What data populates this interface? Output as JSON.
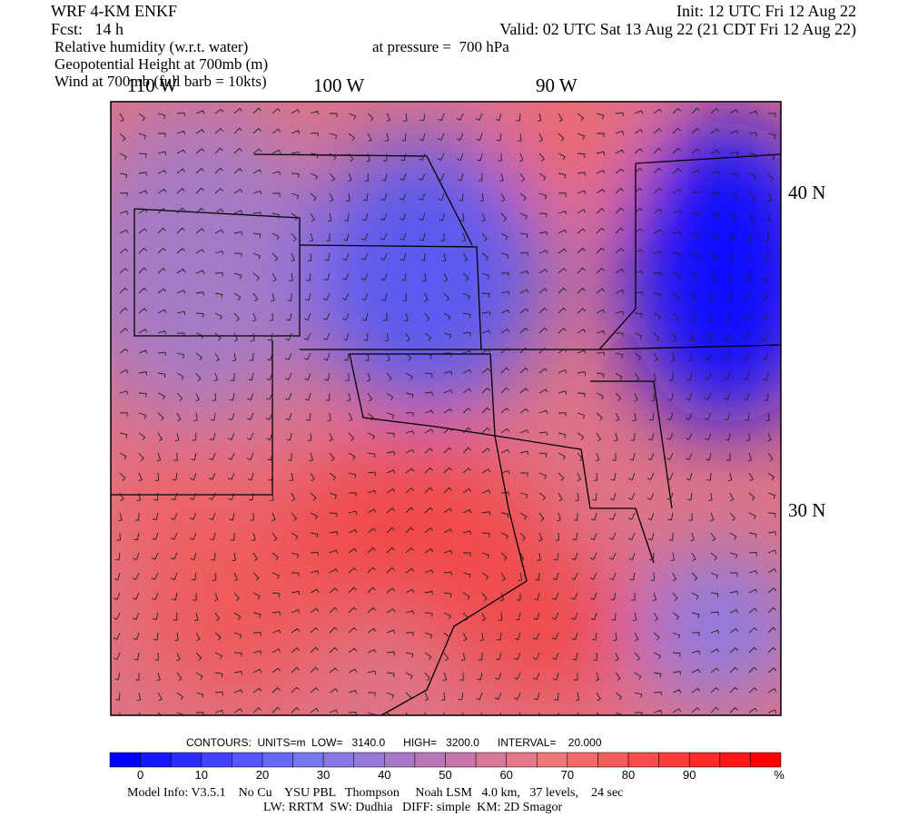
{
  "header": {
    "model": "WRF 4-KM ENKF",
    "forecast": "Fcst:   14 h",
    "init": "Init: 12 UTC Fri 12 Aug 22",
    "valid": "Valid: 02 UTC Sat 13 Aug 22 (21 CDT Fri 12 Aug 22)",
    "fields": [
      "Relative humidity (w.r.t. water)",
      "Geopotential Height at 700mb (m)",
      "Wind at 700mb (full barb = 10kts)"
    ],
    "level": "at pressure =  700 hPa"
  },
  "map": {
    "lon_labels": [
      "110 W",
      "100 W",
      "90 W"
    ],
    "lat_labels": [
      "40 N",
      "30 N"
    ]
  },
  "contours": "CONTOURS:  UNITS=m  LOW=   3140.0      HIGH=   3200.0      INTERVAL=    20.000",
  "colorbar": {
    "ticks": [
      0,
      10,
      20,
      30,
      40,
      50,
      60,
      70,
      80,
      90
    ],
    "unit": "%",
    "colors": [
      "#0000ff",
      "#1616ff",
      "#2c2cff",
      "#4242ff",
      "#5656fc",
      "#6868f6",
      "#7878ee",
      "#8878e4",
      "#9878d8",
      "#a878c8",
      "#b878b8",
      "#c878a8",
      "#d67898",
      "#e47888",
      "#ee7878",
      "#f26a6a",
      "#f55c5c",
      "#f84c4c",
      "#fa3c3c",
      "#fc2a2a",
      "#fe1616",
      "#ff0000"
    ]
  },
  "footer": [
    "Model Info: V3.5.1    No Cu    YSU PBL   Thompson     Noah LSM   4.0 km,   37 levels,    24 sec",
    "LW: RRTM  SW: Dudhia   DIFF: simple  KM: 2D Smagor"
  ]
}
